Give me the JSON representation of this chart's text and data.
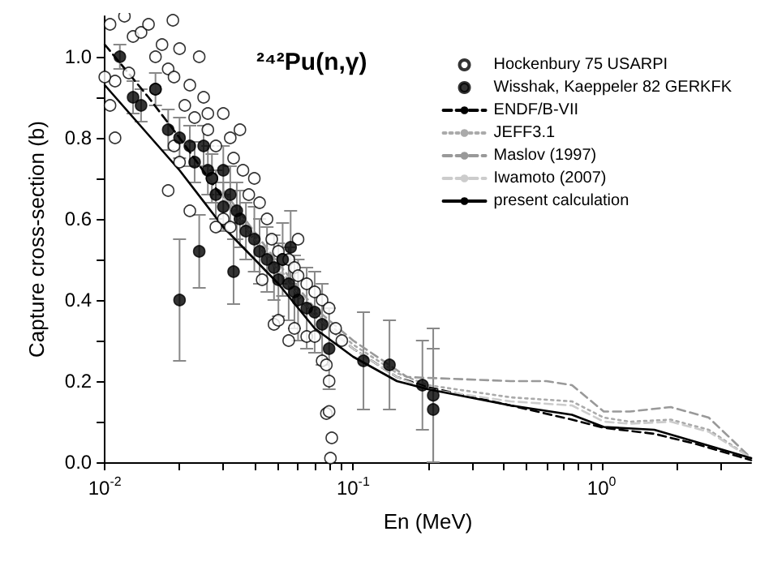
{
  "chart_data": {
    "type": "scatter",
    "title": "²⁴²Pu(n,γ)",
    "xlabel": "En (MeV)",
    "ylabel": "Capture cross-section (b)",
    "log": "x",
    "grid": false,
    "legend": "top right",
    "xlim": [
      0.01,
      4
    ],
    "xticks": [
      {
        "value": 0.01,
        "label": "10$^{-2}$"
      },
      {
        "value": 0.02,
        "label": null
      },
      {
        "value": 0.03,
        "label": null
      },
      {
        "value": 0.04,
        "label": null
      },
      {
        "value": 0.05,
        "label": null
      },
      {
        "value": 0.06,
        "label": null
      },
      {
        "value": 0.07,
        "label": null
      },
      {
        "value": 0.08,
        "label": null
      },
      {
        "value": 0.09,
        "label": null
      },
      {
        "value": 0.1,
        "label": "10$^{-1}$"
      },
      {
        "value": 0.2,
        "label": null
      },
      {
        "value": 0.3,
        "label": null
      },
      {
        "value": 0.4,
        "label": null
      },
      {
        "value": 0.5,
        "label": null
      },
      {
        "value": 0.6,
        "label": null
      },
      {
        "value": 0.7,
        "label": null
      },
      {
        "value": 0.8,
        "label": null
      },
      {
        "value": 0.9,
        "label": null
      },
      {
        "value": 1,
        "label": "10$^{0}$"
      },
      {
        "value": 2,
        "label": null
      },
      {
        "value": 3,
        "label": null
      }
    ],
    "ylim": [
      0,
      1.1
    ],
    "yticks": [
      {
        "value": 0,
        "label": "0.0"
      },
      {
        "value": 0.1,
        "label": null
      },
      {
        "value": 0.2,
        "label": "0.2"
      },
      {
        "value": 0.3,
        "label": null
      },
      {
        "value": 0.4,
        "label": "0.4"
      },
      {
        "value": 0.5,
        "label": null
      },
      {
        "value": 0.6,
        "label": "0.6"
      },
      {
        "value": 0.7,
        "label": null
      },
      {
        "value": 0.8,
        "label": "0.8"
      },
      {
        "value": 0.9,
        "label": null
      },
      {
        "value": 1,
        "label": "1.0"
      }
    ],
    "series": [
      {
        "name": "Hockenbury 75 USARPI",
        "marker": "circle",
        "color": "#ffffff",
        "x": [
          0.0105,
          0.011,
          0.0105,
          0.011,
          0.012,
          0.013,
          0.014,
          0.0125,
          0.015,
          0.016,
          0.017,
          0.018,
          0.016,
          0.019,
          0.02,
          0.021,
          0.022,
          0.023,
          0.025,
          0.026,
          0.019,
          0.02,
          0.018,
          0.022,
          0.027,
          0.028,
          0.03,
          0.032,
          0.033,
          0.035,
          0.036,
          0.03,
          0.028,
          0.032,
          0.038,
          0.04,
          0.042,
          0.045,
          0.047,
          0.05,
          0.052,
          0.055,
          0.058,
          0.06,
          0.06,
          0.065,
          0.07,
          0.075,
          0.08,
          0.085,
          0.09,
          0.043,
          0.048,
          0.05,
          0.055,
          0.058,
          0.065,
          0.07,
          0.075,
          0.078,
          0.08,
          0.078,
          0.08,
          0.082,
          0.081,
          0.01,
          0.026,
          0.024,
          0.0188
        ],
        "values": [
          1.08,
          0.94,
          0.88,
          0.8,
          1.1,
          1.05,
          1.06,
          0.96,
          1.08,
          1.0,
          1.03,
          0.97,
          0.92,
          0.95,
          1.02,
          0.88,
          0.93,
          0.85,
          0.9,
          0.82,
          0.78,
          0.74,
          0.67,
          0.62,
          0.7,
          0.78,
          0.86,
          0.8,
          0.75,
          0.82,
          0.72,
          0.6,
          0.58,
          0.58,
          0.66,
          0.7,
          0.64,
          0.6,
          0.55,
          0.52,
          0.5,
          0.5,
          0.48,
          0.46,
          0.55,
          0.44,
          0.42,
          0.4,
          0.38,
          0.33,
          0.3,
          0.45,
          0.34,
          0.35,
          0.3,
          0.33,
          0.31,
          0.31,
          0.25,
          0.24,
          0.2,
          0.12,
          0.125,
          0.06,
          0.01,
          0.95,
          0.86,
          1.0,
          1.09
        ]
      },
      {
        "name": "Wisshak, Kaeppeler 82 GERKFK",
        "marker": "circle",
        "color": "#000000",
        "x": [
          0.0115,
          0.013,
          0.014,
          0.016,
          0.018,
          0.02,
          0.022,
          0.023,
          0.025,
          0.026,
          0.027,
          0.028,
          0.03,
          0.03,
          0.032,
          0.034,
          0.035,
          0.037,
          0.04,
          0.033,
          0.042,
          0.045,
          0.048,
          0.05,
          0.052,
          0.056,
          0.055,
          0.058,
          0.06,
          0.065,
          0.07,
          0.075,
          0.08,
          0.02,
          0.024,
          0.11,
          0.14,
          0.19,
          0.21,
          0.21
        ],
        "values": [
          1.0,
          0.9,
          0.88,
          0.92,
          0.82,
          0.8,
          0.78,
          0.74,
          0.78,
          0.72,
          0.7,
          0.66,
          0.63,
          0.72,
          0.66,
          0.62,
          0.6,
          0.57,
          0.55,
          0.47,
          0.52,
          0.5,
          0.48,
          0.45,
          0.5,
          0.53,
          0.44,
          0.42,
          0.4,
          0.38,
          0.37,
          0.34,
          0.28,
          0.4,
          0.52,
          0.25,
          0.24,
          0.19,
          0.13,
          0.165
        ],
        "errors": [
          0.03,
          0.04,
          0.04,
          0.04,
          0.05,
          0.05,
          0.05,
          0.05,
          0.05,
          0.06,
          0.06,
          0.06,
          0.06,
          0.06,
          0.07,
          0.07,
          0.07,
          0.07,
          0.08,
          0.08,
          0.08,
          0.08,
          0.08,
          0.09,
          0.09,
          0.09,
          0.09,
          0.09,
          0.1,
          0.1,
          0.1,
          0.1,
          0.1,
          0.15,
          0.09,
          0.12,
          0.11,
          0.11,
          [
            0,
            0.33
          ],
          [
            0,
            0.28
          ]
        ]
      },
      {
        "name": "ENDF/B-VII",
        "type": "line",
        "marker": "none",
        "color": "#000000",
        "line_style": "dashed",
        "x": [
          0.01,
          0.015,
          0.02,
          0.03,
          0.05,
          0.07,
          0.1,
          0.15,
          0.2,
          0.43,
          0.76,
          1.02,
          1.63,
          2.4,
          4
        ],
        "values": [
          1.03,
          0.9,
          0.8,
          0.65,
          0.47,
          0.36,
          0.28,
          0.21,
          0.185,
          0.14,
          0.105,
          0.085,
          0.07,
          0.045,
          0.005
        ]
      },
      {
        "name": "JEFF3.1",
        "type": "line",
        "marker": "none",
        "color": "#aaaaaa",
        "line_style": "dotted",
        "x": [
          0.03,
          0.05,
          0.07,
          0.1,
          0.15,
          0.2,
          0.43,
          0.76,
          1.02,
          1.3,
          1.9,
          2.7,
          4
        ],
        "values": [
          0.66,
          0.48,
          0.37,
          0.29,
          0.22,
          0.19,
          0.16,
          0.15,
          0.11,
          0.1,
          0.105,
          0.08,
          0.01
        ]
      },
      {
        "name": "Maslov (1997)",
        "type": "line",
        "marker": "none",
        "color": "#999999",
        "line_style": "dashed",
        "x": [
          0.03,
          0.05,
          0.07,
          0.1,
          0.165,
          0.43,
          0.6,
          0.76,
          1.02,
          1.3,
          1.9,
          2.7,
          4
        ],
        "values": [
          0.67,
          0.49,
          0.38,
          0.3,
          0.21,
          0.2,
          0.2,
          0.19,
          0.125,
          0.125,
          0.136,
          0.11,
          0.01
        ]
      },
      {
        "name": "Iwamoto (2007)",
        "type": "line",
        "marker": "none",
        "color": "#cccccc",
        "line_style": "dashed",
        "x": [
          0.03,
          0.05,
          0.07,
          0.1,
          0.15,
          0.2,
          0.43,
          0.76,
          1.02,
          1.3,
          1.9,
          2.7,
          4
        ],
        "values": [
          0.65,
          0.47,
          0.36,
          0.28,
          0.21,
          0.18,
          0.15,
          0.14,
          0.1,
          0.095,
          0.1,
          0.075,
          0.01
        ]
      },
      {
        "name": "present calculation",
        "type": "line",
        "marker": "none",
        "color": "#000000",
        "line_style": "solid",
        "x": [
          0.01,
          0.02,
          0.03,
          0.05,
          0.07,
          0.1,
          0.15,
          0.2,
          0.43,
          0.76,
          1.02,
          1.63,
          2.4,
          4
        ],
        "values": [
          0.93,
          0.72,
          0.58,
          0.44,
          0.33,
          0.26,
          0.2,
          0.18,
          0.14,
          0.117,
          0.087,
          0.08,
          0.05,
          0.01
        ]
      }
    ]
  }
}
